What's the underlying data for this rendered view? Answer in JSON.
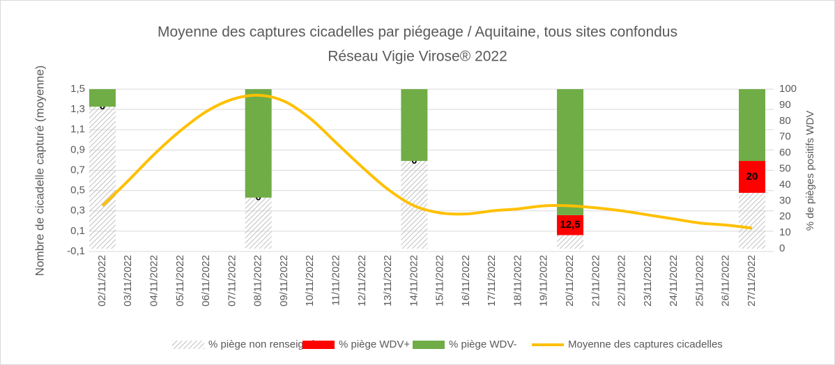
{
  "chart_data": {
    "type": "combo",
    "title": "Moyenne des captures cicadelles par piégeage / Aquitaine, tous sites confondus",
    "subtitle": "Réseau Vigie Virose® 2022",
    "y_label": "Nombre de cicadelle capturé (moyenne)",
    "y2_label": "% de pièges  positifs WDV",
    "categories": [
      "02/11/2022",
      "03/11/2022",
      "04/11/2022",
      "05/11/2022",
      "06/11/2022",
      "07/11/2022",
      "08/11/2022",
      "09/11/2022",
      "10/11/2022",
      "11/11/2022",
      "12/11/2022",
      "13/11/2022",
      "14/11/2022",
      "15/11/2022",
      "16/11/2022",
      "17/11/2022",
      "18/11/2022",
      "19/11/2022",
      "20/11/2022",
      "21/11/2022",
      "22/11/2022",
      "23/11/2022",
      "24/11/2022",
      "25/11/2022",
      "26/11/2022",
      "27/11/2022"
    ],
    "ylim": [
      -0.1,
      1.5
    ],
    "yticks": [
      {
        "value": -0.1,
        "label": "-0,1"
      },
      {
        "value": 0.1,
        "label": "0,1"
      },
      {
        "value": 0.3,
        "label": "0,3"
      },
      {
        "value": 0.5,
        "label": "0,5"
      },
      {
        "value": 0.7,
        "label": "0,7"
      },
      {
        "value": 0.9,
        "label": "0,9"
      },
      {
        "value": 1.1,
        "label": "1,1"
      },
      {
        "value": 1.3,
        "label": "1,3"
      },
      {
        "value": 1.5,
        "label": "1,5"
      }
    ],
    "y2lim": [
      0,
      100
    ],
    "y2ticks": [
      0,
      10,
      20,
      30,
      40,
      50,
      60,
      70,
      80,
      90,
      100
    ],
    "grid": true,
    "legend": "bottom",
    "series": [
      {
        "name": "% piège non renseigné",
        "type": "bar",
        "axis": "y2",
        "pattern": "hatch",
        "color": "#bfbfbf",
        "values": [
          89,
          null,
          null,
          null,
          null,
          null,
          32,
          null,
          null,
          null,
          null,
          null,
          55,
          null,
          null,
          null,
          null,
          null,
          8.5,
          null,
          null,
          null,
          null,
          null,
          null,
          35
        ]
      },
      {
        "name": "% piège WDV+",
        "type": "bar",
        "axis": "y2",
        "color": "#ff0000",
        "values": [
          0,
          null,
          null,
          null,
          null,
          null,
          0,
          null,
          null,
          null,
          null,
          null,
          0,
          null,
          null,
          null,
          null,
          null,
          12.5,
          null,
          null,
          null,
          null,
          null,
          null,
          20
        ],
        "value_labels": [
          "0",
          null,
          null,
          null,
          null,
          null,
          "0",
          null,
          null,
          null,
          null,
          null,
          "0",
          null,
          null,
          null,
          null,
          null,
          "12,5",
          null,
          null,
          null,
          null,
          null,
          null,
          "20"
        ]
      },
      {
        "name": "% piège WDV-",
        "type": "bar",
        "axis": "y2",
        "color": "#70ad47",
        "values": [
          11,
          null,
          null,
          null,
          null,
          null,
          68,
          null,
          null,
          null,
          null,
          null,
          45,
          null,
          null,
          null,
          null,
          null,
          79,
          null,
          null,
          null,
          null,
          null,
          null,
          45
        ]
      },
      {
        "name": "Moyenne des captures cicadelles",
        "type": "line",
        "color": "#ffc000",
        "values": [
          0.35,
          0.6,
          0.86,
          1.09,
          1.28,
          1.4,
          1.44,
          1.38,
          1.21,
          0.97,
          0.73,
          0.51,
          0.35,
          0.28,
          0.27,
          0.3,
          0.32,
          0.35,
          0.35,
          0.33,
          0.3,
          0.26,
          0.22,
          0.18,
          0.16,
          0.13
        ]
      }
    ]
  }
}
